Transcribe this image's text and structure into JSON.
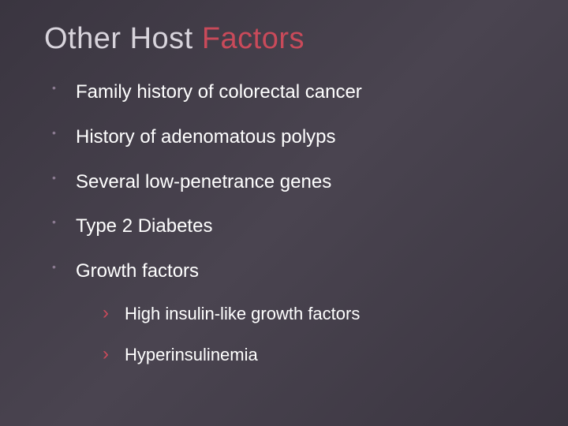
{
  "slide": {
    "title_words": [
      "Other",
      "Host",
      "Factors"
    ],
    "title_colors": [
      "#d8d4dc",
      "#d8d4dc",
      "#c94a5a"
    ],
    "title_fontsize": 38,
    "title_fontweight": 300,
    "background_gradient": [
      "#3a3540",
      "#4a4450",
      "#3a3540"
    ],
    "bullets": [
      {
        "text": "Family history of colorectal cancer"
      },
      {
        "text": "History of adenomatous polyps"
      },
      {
        "text": "Several low-penetrance genes"
      },
      {
        "text": "Type 2 Diabetes"
      },
      {
        "text": "Growth factors",
        "sub": [
          {
            "text": "High insulin-like growth factors"
          },
          {
            "text": "Hyperinsulinemia"
          }
        ]
      }
    ],
    "bullet_fontsize": 24,
    "bullet_color": "#ffffff",
    "bullet_marker_color": "#8a7a90",
    "sub_bullet_fontsize": 22,
    "sub_bullet_marker": "›",
    "sub_bullet_marker_color": "#c94a5a"
  }
}
